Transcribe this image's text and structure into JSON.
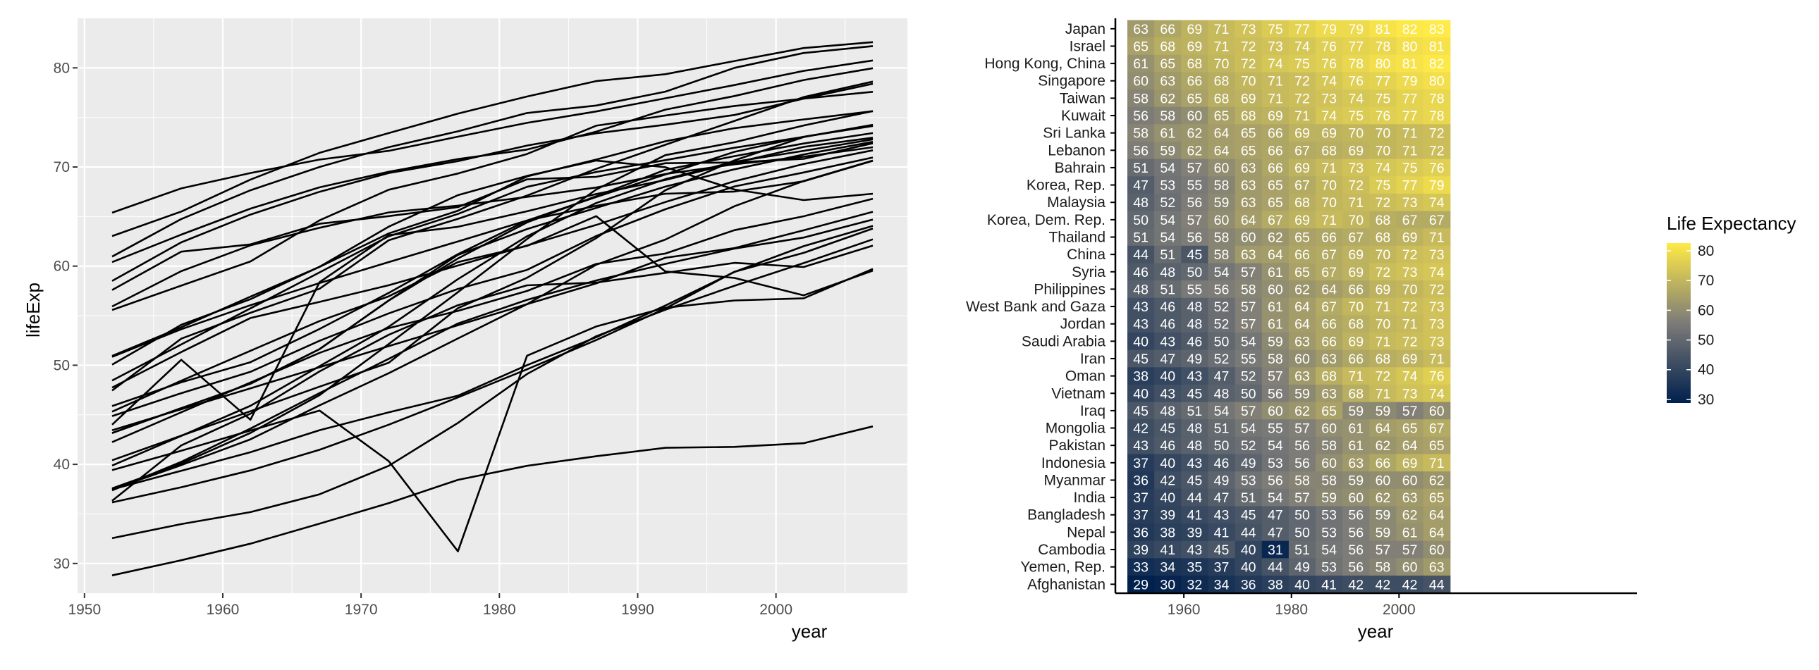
{
  "colors": {
    "panel_bg": "#EBEBEB",
    "grid": "#FFFFFF",
    "line": "#000000",
    "text_dark": "#1A1A1A",
    "tick_text": "#4D4D4D",
    "heat_low": "#00204D",
    "heat_mid": "#7C7B78",
    "heat_high": "#FFEA46"
  },
  "chart_data": [
    {
      "type": "line",
      "title": "",
      "xlabel": "year",
      "ylabel": "lifeExp",
      "xlim": [
        1949.5,
        2009.5
      ],
      "ylim": [
        27,
        85
      ],
      "x_ticks": [
        1950,
        1960,
        1970,
        1980,
        1990,
        2000
      ],
      "y_ticks": [
        30,
        40,
        50,
        60,
        70,
        80
      ],
      "grid": true,
      "x": [
        1952,
        1957,
        1962,
        1967,
        1972,
        1977,
        1982,
        1987,
        1992,
        1997,
        2002,
        2007
      ],
      "series": [
        {
          "values": [
            63.03,
            65.5,
            68.73,
            71.43,
            73.42,
            75.38,
            77.11,
            78.67,
            79.36,
            80.69,
            82.0,
            82.6
          ]
        },
        {
          "values": [
            65.39,
            67.84,
            69.39,
            70.75,
            71.63,
            73.06,
            74.45,
            75.6,
            76.93,
            78.27,
            79.7,
            80.75
          ]
        },
        {
          "values": [
            60.96,
            64.75,
            67.65,
            70.0,
            72.0,
            73.6,
            75.45,
            76.2,
            77.6,
            80.0,
            81.5,
            82.2
          ]
        },
        {
          "values": [
            60.4,
            63.18,
            65.8,
            67.95,
            69.52,
            70.8,
            71.76,
            73.56,
            75.79,
            77.16,
            78.77,
            79.97
          ]
        },
        {
          "values": [
            58.5,
            62.4,
            65.2,
            67.5,
            69.39,
            70.59,
            72.16,
            73.4,
            74.26,
            75.25,
            76.9,
            78.4
          ]
        },
        {
          "values": [
            55.57,
            58.03,
            60.47,
            64.62,
            67.71,
            69.34,
            71.31,
            74.17,
            75.19,
            76.16,
            76.9,
            77.59
          ]
        },
        {
          "values": [
            57.59,
            61.46,
            62.19,
            64.27,
            65.04,
            65.95,
            68.76,
            69.01,
            70.38,
            70.46,
            70.82,
            72.4
          ]
        },
        {
          "values": [
            55.93,
            59.49,
            62.09,
            63.87,
            65.42,
            66.1,
            66.98,
            67.93,
            69.29,
            70.27,
            71.03,
            71.99
          ]
        },
        {
          "values": [
            50.94,
            53.83,
            56.92,
            59.92,
            63.3,
            65.59,
            69.05,
            70.75,
            72.6,
            73.92,
            74.8,
            75.63
          ]
        },
        {
          "values": [
            47.45,
            52.68,
            55.29,
            57.72,
            62.61,
            64.77,
            67.12,
            69.81,
            72.24,
            74.65,
            77.05,
            78.62
          ]
        },
        {
          "values": [
            48.46,
            52.1,
            55.74,
            59.37,
            63.01,
            65.26,
            68.0,
            69.5,
            70.69,
            71.94,
            73.04,
            74.24
          ]
        },
        {
          "values": [
            50.06,
            54.08,
            56.66,
            59.94,
            63.98,
            67.16,
            69.1,
            70.65,
            69.98,
            67.73,
            66.66,
            67.3
          ]
        },
        {
          "values": [
            50.85,
            53.63,
            56.06,
            58.29,
            60.41,
            62.49,
            64.6,
            66.08,
            67.3,
            67.52,
            68.56,
            70.62
          ]
        },
        {
          "values": [
            44.0,
            50.55,
            44.5,
            58.38,
            63.12,
            63.97,
            65.53,
            67.27,
            68.69,
            70.43,
            72.03,
            72.96
          ]
        },
        {
          "values": [
            45.88,
            48.28,
            50.31,
            53.66,
            57.3,
            61.2,
            64.59,
            66.97,
            69.25,
            71.53,
            73.05,
            74.14
          ]
        },
        {
          "values": [
            47.75,
            51.33,
            54.76,
            56.39,
            58.07,
            60.06,
            62.08,
            64.15,
            66.46,
            68.56,
            70.3,
            71.69
          ]
        },
        {
          "values": [
            43.16,
            45.67,
            48.13,
            51.63,
            56.53,
            60.77,
            64.41,
            67.05,
            69.72,
            71.1,
            72.37,
            73.42
          ]
        },
        {
          "values": [
            43.16,
            45.67,
            48.13,
            51.63,
            56.53,
            61.13,
            63.74,
            65.87,
            68.02,
            69.77,
            71.26,
            72.54
          ]
        },
        {
          "values": [
            39.88,
            42.87,
            45.91,
            49.9,
            53.89,
            58.69,
            63.01,
            66.36,
            68.77,
            70.53,
            71.63,
            72.78
          ]
        },
        {
          "values": [
            44.87,
            47.18,
            49.33,
            52.47,
            55.23,
            57.7,
            59.62,
            63.04,
            65.74,
            68.04,
            69.45,
            70.96
          ]
        },
        {
          "values": [
            37.58,
            40.08,
            43.17,
            46.99,
            52.14,
            57.37,
            62.73,
            67.73,
            71.2,
            72.5,
            74.19,
            75.64
          ]
        },
        {
          "values": [
            40.41,
            42.89,
            45.36,
            47.84,
            50.25,
            55.76,
            58.82,
            62.82,
            67.66,
            70.67,
            73.02,
            74.25
          ]
        },
        {
          "values": [
            45.32,
            48.44,
            51.46,
            54.46,
            56.95,
            60.41,
            62.04,
            65.04,
            59.46,
            58.81,
            57.05,
            59.55
          ]
        },
        {
          "values": [
            42.24,
            45.25,
            48.25,
            51.25,
            53.75,
            55.49,
            57.49,
            60.22,
            61.27,
            63.63,
            65.03,
            66.8
          ]
        },
        {
          "values": [
            43.44,
            45.56,
            47.67,
            49.8,
            51.93,
            54.04,
            56.16,
            58.25,
            60.84,
            61.82,
            63.61,
            65.48
          ]
        },
        {
          "values": [
            37.47,
            39.92,
            42.52,
            45.96,
            49.2,
            52.7,
            56.16,
            60.14,
            62.68,
            66.04,
            68.59,
            70.65
          ]
        },
        {
          "values": [
            36.32,
            41.91,
            45.11,
            49.38,
            53.07,
            56.06,
            58.06,
            58.34,
            59.32,
            60.33,
            59.91,
            62.07
          ]
        },
        {
          "values": [
            37.37,
            40.25,
            43.61,
            47.19,
            50.65,
            54.21,
            56.6,
            58.55,
            60.22,
            61.77,
            62.88,
            64.7
          ]
        },
        {
          "values": [
            37.48,
            39.35,
            41.22,
            43.45,
            45.25,
            46.92,
            50.01,
            52.82,
            56.02,
            59.41,
            62.01,
            64.06
          ]
        },
        {
          "values": [
            36.16,
            37.69,
            39.39,
            41.47,
            44.0,
            46.75,
            49.59,
            52.54,
            55.73,
            59.43,
            61.34,
            63.79
          ]
        },
        {
          "values": [
            39.42,
            41.37,
            43.41,
            45.42,
            40.32,
            31.22,
            50.96,
            53.91,
            55.8,
            56.53,
            56.75,
            59.72
          ]
        },
        {
          "values": [
            32.55,
            33.97,
            35.18,
            36.98,
            39.85,
            44.18,
            49.11,
            52.92,
            55.6,
            58.02,
            60.31,
            62.7
          ]
        },
        {
          "values": [
            28.8,
            30.33,
            32.0,
            34.02,
            36.09,
            38.44,
            39.85,
            40.82,
            41.67,
            41.76,
            42.13,
            43.83
          ]
        }
      ]
    },
    {
      "type": "heatmap",
      "title": "",
      "xlabel": "year",
      "x_ticks": [
        1960,
        1980,
        2000
      ],
      "legend_title": "Life Expectancy",
      "legend_ticks": [
        30,
        40,
        50,
        60,
        70,
        80
      ],
      "legend_position": "right",
      "color_range": [
        28.8,
        82.6
      ],
      "years": [
        1952,
        1957,
        1962,
        1967,
        1972,
        1977,
        1982,
        1987,
        1992,
        1997,
        2002,
        2007
      ],
      "countries": [
        "Japan",
        "Israel",
        "Hong Kong, China",
        "Singapore",
        "Taiwan",
        "Kuwait",
        "Sri Lanka",
        "Lebanon",
        "Bahrain",
        "Korea, Rep.",
        "Malaysia",
        "Korea, Dem. Rep.",
        "Thailand",
        "China",
        "Syria",
        "Philippines",
        "West Bank and Gaza",
        "Jordan",
        "Saudi Arabia",
        "Iran",
        "Oman",
        "Vietnam",
        "Iraq",
        "Mongolia",
        "Pakistan",
        "Indonesia",
        "Myanmar",
        "India",
        "Bangladesh",
        "Nepal",
        "Cambodia",
        "Yemen, Rep.",
        "Afghanistan"
      ],
      "values": [
        [
          63,
          66,
          69,
          71,
          73,
          75,
          77,
          79,
          79,
          81,
          82,
          83
        ],
        [
          65,
          68,
          69,
          71,
          72,
          73,
          74,
          76,
          77,
          78,
          80,
          81
        ],
        [
          61,
          65,
          68,
          70,
          72,
          74,
          75,
          76,
          78,
          80,
          81,
          82
        ],
        [
          60,
          63,
          66,
          68,
          70,
          71,
          72,
          74,
          76,
          77,
          79,
          80
        ],
        [
          58,
          62,
          65,
          68,
          69,
          71,
          72,
          73,
          74,
          75,
          77,
          78
        ],
        [
          56,
          58,
          60,
          65,
          68,
          69,
          71,
          74,
          75,
          76,
          77,
          78
        ],
        [
          58,
          61,
          62,
          64,
          65,
          66,
          69,
          69,
          70,
          70,
          71,
          72
        ],
        [
          56,
          59,
          62,
          64,
          65,
          66,
          67,
          68,
          69,
          70,
          71,
          72
        ],
        [
          51,
          54,
          57,
          60,
          63,
          66,
          69,
          71,
          73,
          74,
          75,
          76
        ],
        [
          47,
          53,
          55,
          58,
          63,
          65,
          67,
          70,
          72,
          75,
          77,
          79
        ],
        [
          48,
          52,
          56,
          59,
          63,
          65,
          68,
          70,
          71,
          72,
          73,
          74
        ],
        [
          50,
          54,
          57,
          60,
          64,
          67,
          69,
          71,
          70,
          68,
          67,
          67
        ],
        [
          51,
          54,
          56,
          58,
          60,
          62,
          65,
          66,
          67,
          68,
          69,
          71
        ],
        [
          44,
          51,
          45,
          58,
          63,
          64,
          66,
          67,
          69,
          70,
          72,
          73
        ],
        [
          46,
          48,
          50,
          54,
          57,
          61,
          65,
          67,
          69,
          72,
          73,
          74
        ],
        [
          48,
          51,
          55,
          56,
          58,
          60,
          62,
          64,
          66,
          69,
          70,
          72
        ],
        [
          43,
          46,
          48,
          52,
          57,
          61,
          64,
          67,
          70,
          71,
          72,
          73
        ],
        [
          43,
          46,
          48,
          52,
          57,
          61,
          64,
          66,
          68,
          70,
          71,
          73
        ],
        [
          40,
          43,
          46,
          50,
          54,
          59,
          63,
          66,
          69,
          71,
          72,
          73
        ],
        [
          45,
          47,
          49,
          52,
          55,
          58,
          60,
          63,
          66,
          68,
          69,
          71
        ],
        [
          38,
          40,
          43,
          47,
          52,
          57,
          63,
          68,
          71,
          72,
          74,
          76
        ],
        [
          40,
          43,
          45,
          48,
          50,
          56,
          59,
          63,
          68,
          71,
          73,
          74
        ],
        [
          45,
          48,
          51,
          54,
          57,
          60,
          62,
          65,
          59,
          59,
          57,
          60
        ],
        [
          42,
          45,
          48,
          51,
          54,
          55,
          57,
          60,
          61,
          64,
          65,
          67
        ],
        [
          43,
          46,
          48,
          50,
          52,
          54,
          56,
          58,
          61,
          62,
          64,
          65
        ],
        [
          37,
          40,
          43,
          46,
          49,
          53,
          56,
          60,
          63,
          66,
          69,
          71
        ],
        [
          36,
          42,
          45,
          49,
          53,
          56,
          58,
          58,
          59,
          60,
          60,
          62
        ],
        [
          37,
          40,
          44,
          47,
          51,
          54,
          57,
          59,
          60,
          62,
          63,
          65
        ],
        [
          37,
          39,
          41,
          43,
          45,
          47,
          50,
          53,
          56,
          59,
          62,
          64
        ],
        [
          36,
          38,
          39,
          41,
          44,
          47,
          50,
          53,
          56,
          59,
          61,
          64
        ],
        [
          39,
          41,
          43,
          45,
          40,
          31,
          51,
          54,
          56,
          57,
          57,
          60
        ],
        [
          33,
          34,
          35,
          37,
          40,
          44,
          49,
          53,
          56,
          58,
          60,
          63
        ],
        [
          29,
          30,
          32,
          34,
          36,
          38,
          40,
          41,
          42,
          42,
          42,
          44
        ]
      ]
    }
  ]
}
